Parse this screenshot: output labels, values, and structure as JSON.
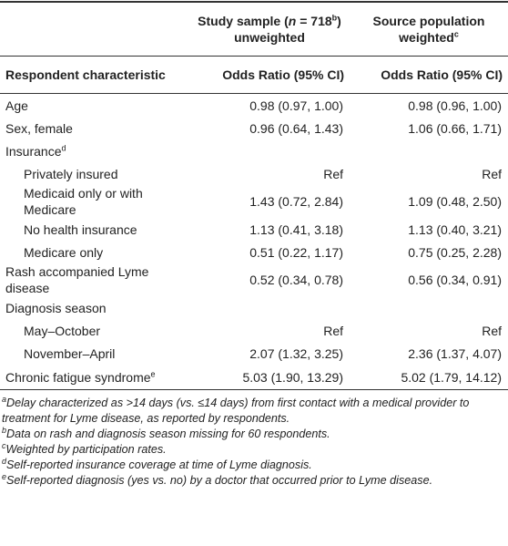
{
  "header": {
    "col1": {
      "pre": "Study sample (",
      "n": "n",
      "eq": " = 718",
      "sup": "b",
      "post": ")",
      "line2": "unweighted"
    },
    "col2": {
      "line1": "Source population",
      "line2": "weighted",
      "sup": "c"
    }
  },
  "subheader": [
    "Respondent characteristic",
    "Odds Ratio (95% CI)",
    "Odds Ratio (95% CI)"
  ],
  "rows": [
    {
      "label": "Age",
      "values": [
        "0.98 (0.97, 1.00)",
        "0.98 (0.96, 1.00)"
      ]
    },
    {
      "label": "Sex, female",
      "values": [
        "0.96 (0.64, 1.43)",
        "1.06 (0.66, 1.71)"
      ]
    },
    {
      "label": "Insurance",
      "sup": "d",
      "children": [
        {
          "label": "Privately insured",
          "values": [
            "Ref",
            "Ref"
          ]
        },
        {
          "label": "Medicaid only or with Medicare",
          "values": [
            "1.43 (0.72, 2.84)",
            "1.09 (0.48, 2.50)"
          ]
        },
        {
          "label": "No health insurance",
          "values": [
            "1.13 (0.41, 3.18)",
            "1.13 (0.40, 3.21)"
          ]
        },
        {
          "label": "Medicare only",
          "values": [
            "0.51 (0.22, 1.17)",
            "0.75 (0.25, 2.28)"
          ]
        }
      ]
    },
    {
      "label": "Rash accompanied Lyme disease",
      "values": [
        "0.52 (0.34, 0.78)",
        "0.56 (0.34, 0.91)"
      ]
    },
    {
      "label": "Diagnosis season",
      "children": [
        {
          "label": "May–October",
          "values": [
            "Ref",
            "Ref"
          ]
        },
        {
          "label": "November–April",
          "values": [
            "2.07 (1.32, 3.25)",
            "2.36 (1.37, 4.07)"
          ]
        }
      ]
    },
    {
      "label": "Chronic fatigue syndrome",
      "sup": "e",
      "values": [
        "5.03 (1.90, 13.29)",
        "5.02 (1.79, 14.12)"
      ]
    }
  ],
  "footnotes": [
    {
      "mark": "a",
      "text": "Delay characterized as >14 days (vs. ≤14 days) from first contact with a medical provider to treatment for Lyme disease, as reported by respondents."
    },
    {
      "mark": "b",
      "text": "Data on rash and diagnosis season missing for 60 respondents."
    },
    {
      "mark": "c",
      "text": "Weighted by participation rates."
    },
    {
      "mark": "d",
      "text": "Self-reported insurance coverage at time of Lyme diagnosis."
    },
    {
      "mark": "e",
      "text": "Self-reported diagnosis (yes vs. no) by a doctor that occurred prior to Lyme disease."
    }
  ]
}
